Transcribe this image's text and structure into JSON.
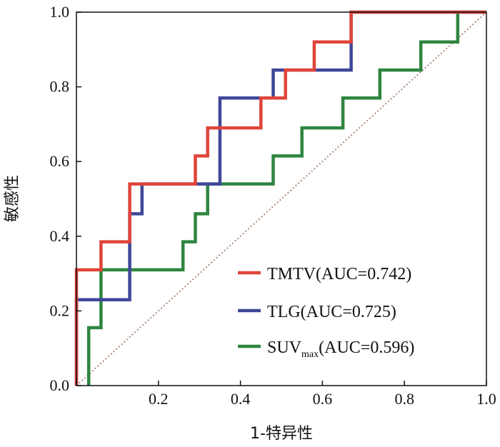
{
  "chart_data": {
    "type": "line",
    "xlabel": "1-特异性",
    "ylabel": "敏感性",
    "xlim": [
      0,
      1
    ],
    "ylim": [
      0,
      1
    ],
    "x_ticks": [
      "0.0",
      "0.2",
      "0.4",
      "0.6",
      "0.8",
      "1.0"
    ],
    "y_ticks": [
      "0.0",
      "0.2",
      "0.4",
      "0.6",
      "0.8",
      "1.0"
    ],
    "grid": false,
    "legend_position": "bottom-right",
    "reference_line": {
      "style": "dotted",
      "color": "#b08a78",
      "from": [
        0,
        0
      ],
      "to": [
        1,
        1
      ]
    },
    "series": [
      {
        "name": "TMTV(AUC=0.742)",
        "color": "#e0443a",
        "x": [
          0.0,
          0.0,
          0.06,
          0.06,
          0.13,
          0.13,
          0.29,
          0.29,
          0.32,
          0.32,
          0.45,
          0.45,
          0.48,
          0.48,
          0.51,
          0.51,
          0.58,
          0.58,
          0.67,
          0.67,
          0.93,
          0.93,
          1.0
        ],
        "y": [
          0.0,
          0.31,
          0.31,
          0.385,
          0.385,
          0.54,
          0.54,
          0.615,
          0.615,
          0.69,
          0.69,
          0.77,
          0.77,
          0.77,
          0.77,
          0.845,
          0.845,
          0.92,
          0.92,
          1.0,
          1.0,
          1.0,
          1.0
        ]
      },
      {
        "name": "TLG(AUC=0.725)",
        "color": "#3f4699",
        "x": [
          0.0,
          0.0,
          0.06,
          0.06,
          0.13,
          0.13,
          0.16,
          0.16,
          0.35,
          0.35,
          0.48,
          0.48,
          0.67,
          0.67,
          0.93,
          0.93,
          1.0
        ],
        "y": [
          0.0,
          0.23,
          0.23,
          0.23,
          0.23,
          0.46,
          0.46,
          0.54,
          0.54,
          0.77,
          0.77,
          0.845,
          0.845,
          1.0,
          1.0,
          1.0,
          1.0
        ]
      },
      {
        "name": "SUV",
        "name_subscript": "max",
        "name_suffix": "(AUC=0.596)",
        "color": "#2e8540",
        "x": [
          0.03,
          0.03,
          0.06,
          0.06,
          0.26,
          0.26,
          0.29,
          0.29,
          0.32,
          0.32,
          0.48,
          0.48,
          0.55,
          0.55,
          0.65,
          0.65,
          0.74,
          0.74,
          0.84,
          0.84,
          0.93,
          0.93,
          1.0
        ],
        "y": [
          0.0,
          0.155,
          0.155,
          0.31,
          0.31,
          0.385,
          0.385,
          0.46,
          0.46,
          0.54,
          0.54,
          0.615,
          0.615,
          0.69,
          0.69,
          0.77,
          0.77,
          0.845,
          0.845,
          0.92,
          0.92,
          1.0,
          1.0
        ]
      }
    ]
  }
}
